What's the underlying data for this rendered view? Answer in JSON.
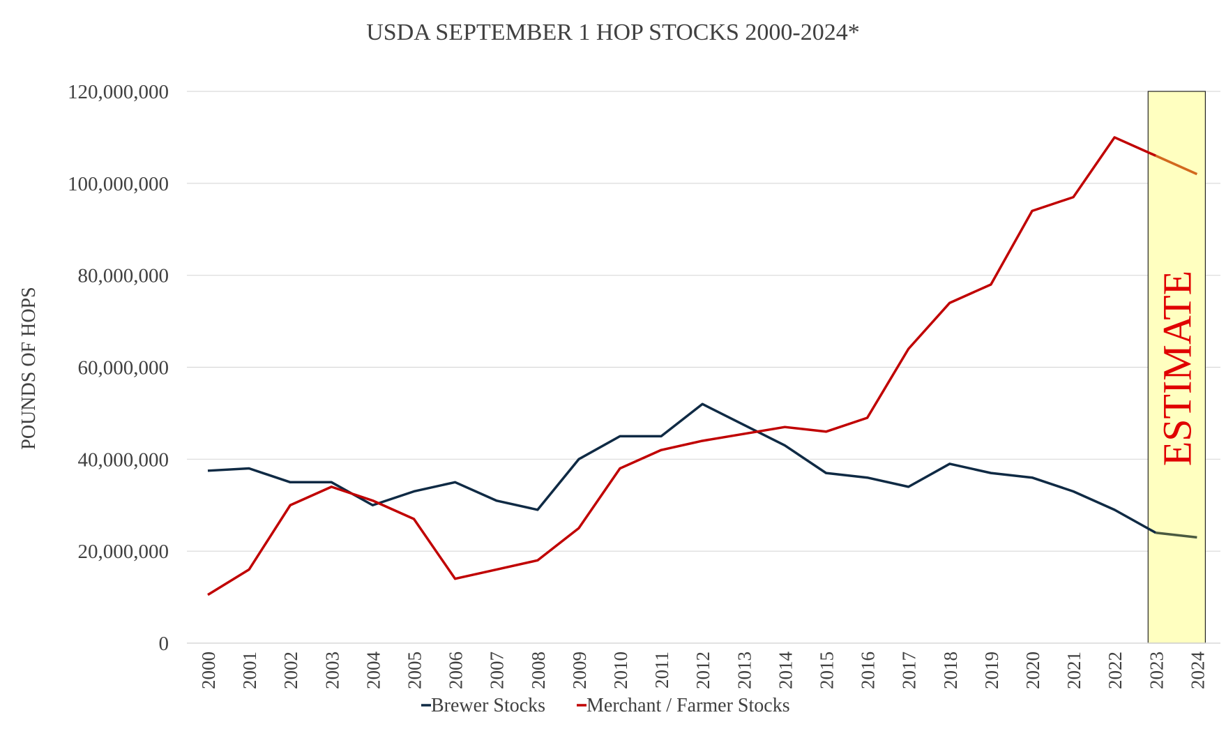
{
  "chart_data": {
    "type": "line",
    "title": "USDA SEPTEMBER 1 HOP STOCKS 2000-2024*",
    "xlabel": "",
    "ylabel": "POUNDS OF HOPS",
    "ylim": [
      0,
      120000000
    ],
    "yticks": [
      0,
      20000000,
      40000000,
      60000000,
      80000000,
      100000000,
      120000000
    ],
    "ytick_labels": [
      "0",
      "20,000,000",
      "40,000,000",
      "60,000,000",
      "80,000,000",
      "100,000,000",
      "120,000,000"
    ],
    "x": [
      "2000",
      "2001",
      "2002",
      "2003",
      "2004",
      "2005",
      "2006",
      "2007",
      "2008",
      "2009",
      "2010",
      "2011",
      "2012",
      "2013",
      "2014",
      "2015",
      "2016",
      "2017",
      "2018",
      "2019",
      "2020",
      "2021",
      "2022",
      "2023",
      "2024"
    ],
    "grid": true,
    "legend_position": "bottom",
    "series": [
      {
        "name": "Brewer Stocks",
        "color": "#0f2a44",
        "estimate_color": "#4a5a40",
        "values": [
          37500000,
          38000000,
          35000000,
          35000000,
          30000000,
          33000000,
          35000000,
          31000000,
          29000000,
          40000000,
          45000000,
          45000000,
          52000000,
          47500000,
          43000000,
          37000000,
          36000000,
          34000000,
          39000000,
          37000000,
          36000000,
          33000000,
          29000000,
          24000000,
          23000000
        ]
      },
      {
        "name": "Merchant / Farmer Stocks",
        "color": "#c00000",
        "estimate_color": "#d2691e",
        "values": [
          10500000,
          16000000,
          30000000,
          34000000,
          31000000,
          27000000,
          14000000,
          16000000,
          18000000,
          25000000,
          38000000,
          42000000,
          44000000,
          45500000,
          47000000,
          46000000,
          49000000,
          64000000,
          74000000,
          78000000,
          94000000,
          97000000,
          110000000,
          106000000,
          102000000
        ]
      }
    ],
    "annotations": [
      {
        "text": "ESTIMATE",
        "from": "2023",
        "to": "2024",
        "fill": "#ffffc0",
        "text_color": "#e00000"
      }
    ]
  }
}
